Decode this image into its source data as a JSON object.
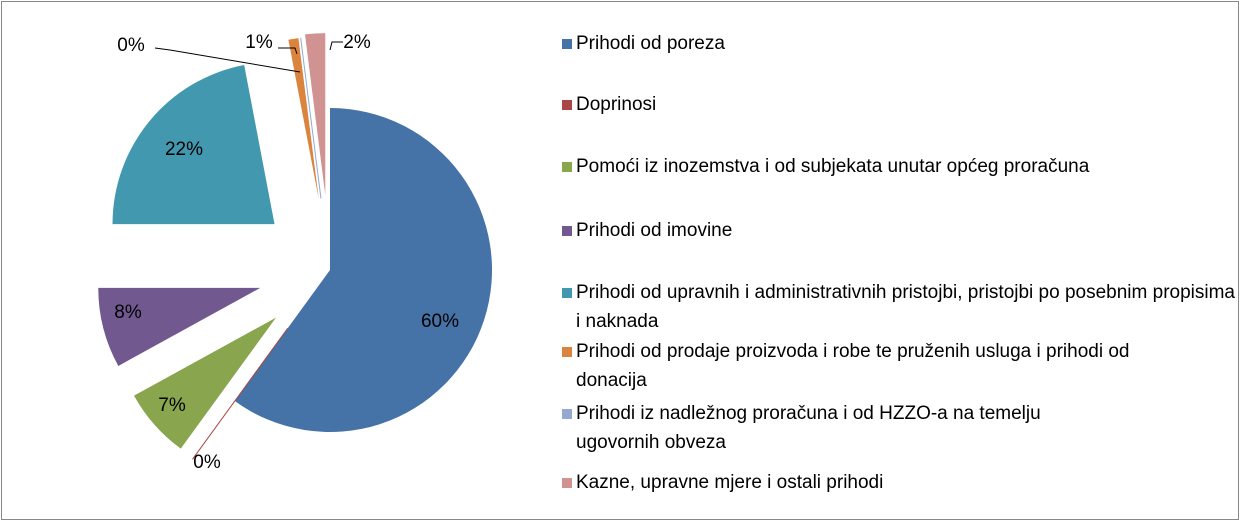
{
  "chart_data": {
    "type": "pie",
    "categories": [
      "Prihodi od poreza",
      "Doprinosi",
      "Pomoći iz inozemstva i od subjekata unutar općeg proračuna",
      "Prihodi od imovine",
      "Prihodi od upravnih i administrativnih pristojbi, pristojbi po posebnim propisima i naknada",
      "Prihodi od prodaje proizvoda i robe te pruženih usluga i prihodi od donacija",
      "Prihodi iz nadležnog proračuna i od HZZO-a na temelju ugovornih obveza",
      "Kazne, upravne mjere i ostali prihodi"
    ],
    "values": [
      60,
      0,
      7,
      8,
      22,
      1,
      0,
      2
    ],
    "value_labels": [
      "60%",
      "0%",
      "7%",
      "8%",
      "22%",
      "1%",
      "0%",
      "2%"
    ],
    "colors": [
      "#4572a7",
      "#aa4643",
      "#89a54e",
      "#71588f",
      "#4198af",
      "#db843d",
      "#93a9cf",
      "#d19392"
    ],
    "legend": "right"
  }
}
